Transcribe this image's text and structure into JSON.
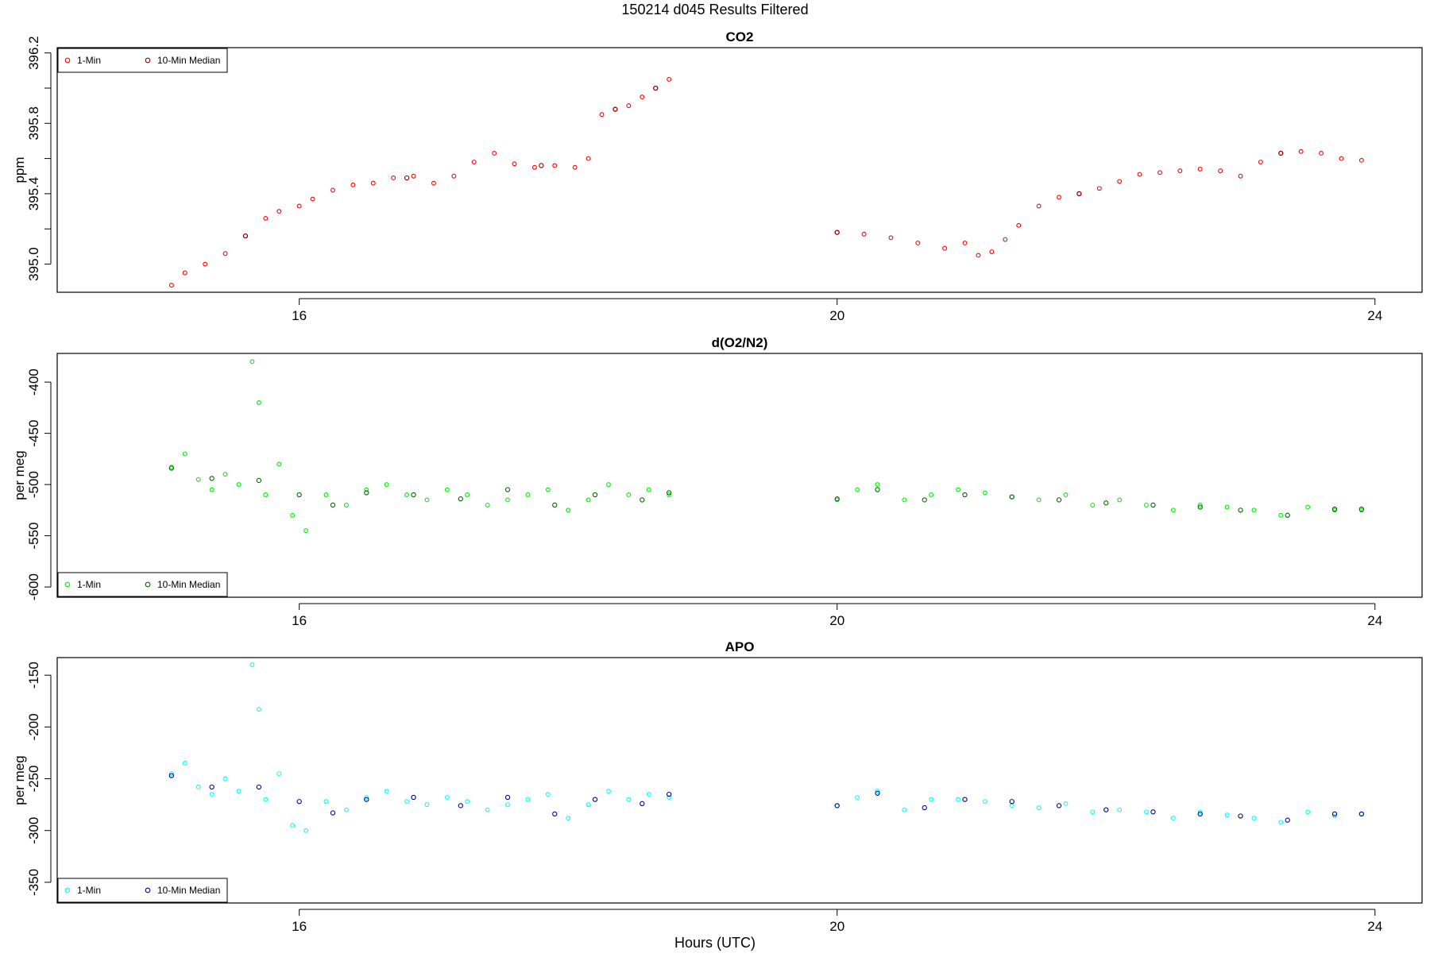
{
  "figure": {
    "title": "150214   d045   Results Filtered",
    "xlabel": "Hours (UTC)"
  },
  "chart_data": [
    {
      "type": "scatter",
      "title": "CO2",
      "ylabel": "ppm",
      "xlim": [
        14.2,
        24.35
      ],
      "ylim": [
        394.84,
        396.23
      ],
      "xticks": [
        16,
        20,
        24
      ],
      "xtick_labels": [
        "16",
        "20",
        "24"
      ],
      "yticks": [
        395.0,
        395.4,
        395.8,
        396.2
      ],
      "ytick_labels": [
        "395.0",
        "395.4",
        "395.8",
        "396.2"
      ],
      "yminor_ticks": [
        395.2,
        395.6,
        396.0
      ],
      "legend": {
        "position": "top-left",
        "entries": [
          "1-Min",
          "10-Min Median"
        ]
      },
      "series": [
        {
          "name": "1-Min",
          "color": "#ff0000",
          "x": [
            15.05,
            15.15,
            15.3,
            15.45,
            15.6,
            15.75,
            15.85,
            16.0,
            16.1,
            16.25,
            16.4,
            16.55,
            16.7,
            16.85,
            17.0,
            17.15,
            17.3,
            17.45,
            17.6,
            17.75,
            17.9,
            18.05,
            18.15,
            18.25,
            18.35,
            18.45,
            18.55,
            18.65,
            18.75,
            20.0,
            20.2,
            20.4,
            20.6,
            20.8,
            20.95,
            21.05,
            21.15,
            21.25,
            21.35,
            21.5,
            21.65,
            21.8,
            21.95,
            22.1,
            22.25,
            22.4,
            22.55,
            22.7,
            22.85,
            23.0,
            23.15,
            23.3,
            23.45,
            23.6,
            23.75,
            23.9
          ],
          "y": [
            394.88,
            394.95,
            395.0,
            395.06,
            395.16,
            395.26,
            395.3,
            395.33,
            395.37,
            395.42,
            395.45,
            395.46,
            395.49,
            395.5,
            395.46,
            395.5,
            395.58,
            395.63,
            395.57,
            395.55,
            395.56,
            395.55,
            395.6,
            395.85,
            395.88,
            395.9,
            395.95,
            396.0,
            396.05,
            395.18,
            395.17,
            395.15,
            395.12,
            395.09,
            395.12,
            395.05,
            395.07,
            395.14,
            395.22,
            395.33,
            395.38,
            395.4,
            395.43,
            395.47,
            395.51,
            395.52,
            395.53,
            395.54,
            395.53,
            395.5,
            395.58,
            395.63,
            395.64,
            395.63,
            395.6,
            395.59
          ]
        },
        {
          "name": "10-Min Median",
          "color": "#8b0000",
          "x": [
            15.6,
            16.8,
            17.8,
            18.35,
            18.65,
            20.0,
            21.8,
            23.3
          ],
          "y": [
            395.16,
            395.49,
            395.56,
            395.88,
            396.0,
            395.18,
            395.4,
            395.63
          ]
        }
      ]
    },
    {
      "type": "scatter",
      "title": "d(O2/N2)",
      "ylabel": "per meg",
      "xlim": [
        14.2,
        24.35
      ],
      "ylim": [
        -610,
        -372
      ],
      "xticks": [
        16,
        20,
        24
      ],
      "xtick_labels": [
        "16",
        "20",
        "24"
      ],
      "yticks": [
        -400,
        -450,
        -500,
        -550,
        -600
      ],
      "ytick_labels": [
        "-400",
        "-450",
        "-500",
        "-550",
        "-600"
      ],
      "legend": {
        "position": "bottom-left",
        "entries": [
          "1-Min",
          "10-Min Median"
        ]
      },
      "series": [
        {
          "name": "1-Min",
          "color": "#00ee00",
          "x": [
            15.05,
            15.15,
            15.25,
            15.35,
            15.45,
            15.55,
            15.65,
            15.7,
            15.75,
            15.85,
            15.95,
            16.05,
            16.2,
            16.35,
            16.5,
            16.65,
            16.8,
            16.95,
            17.1,
            17.25,
            17.4,
            17.55,
            17.7,
            17.85,
            18.0,
            18.15,
            18.3,
            18.45,
            18.6,
            18.75,
            20.0,
            20.15,
            20.3,
            20.5,
            20.7,
            20.9,
            21.1,
            21.3,
            21.5,
            21.7,
            21.9,
            22.1,
            22.3,
            22.5,
            22.7,
            22.9,
            23.1,
            23.3,
            23.5,
            23.7,
            23.9
          ],
          "y": [
            -483,
            -470,
            -495,
            -505,
            -490,
            -500,
            -380,
            -420,
            -510,
            -480,
            -530,
            -545,
            -510,
            -520,
            -505,
            -500,
            -510,
            -515,
            -505,
            -510,
            -520,
            -515,
            -510,
            -505,
            -525,
            -515,
            -500,
            -510,
            -505,
            -510,
            -515,
            -505,
            -500,
            -515,
            -510,
            -505,
            -508,
            -512,
            -515,
            -510,
            -520,
            -515,
            -520,
            -525,
            -520,
            -522,
            -525,
            -530,
            -522,
            -525,
            -525
          ]
        },
        {
          "name": "10-Min Median",
          "color": "#006400",
          "x": [
            15.05,
            15.35,
            15.7,
            16.0,
            16.25,
            16.5,
            16.85,
            17.2,
            17.55,
            17.9,
            18.2,
            18.55,
            18.75,
            20.0,
            20.3,
            20.65,
            20.95,
            21.3,
            21.65,
            22.0,
            22.35,
            22.7,
            23.0,
            23.35,
            23.7,
            23.9
          ],
          "y": [
            -484,
            -494,
            -496,
            -510,
            -520,
            -508,
            -510,
            -514,
            -505,
            -520,
            -510,
            -515,
            -508,
            -514,
            -505,
            -515,
            -510,
            -512,
            -515,
            -518,
            -520,
            -522,
            -525,
            -530,
            -524,
            -524
          ]
        }
      ]
    },
    {
      "type": "scatter",
      "title": "APO",
      "ylabel": "per meg",
      "xlim": [
        14.2,
        24.35
      ],
      "ylim": [
        -370,
        -133
      ],
      "xticks": [
        16,
        20,
        24
      ],
      "xtick_labels": [
        "16",
        "20",
        "24"
      ],
      "yticks": [
        -150,
        -200,
        -250,
        -300,
        -350
      ],
      "ytick_labels": [
        "-150",
        "-200",
        "-250",
        "-300",
        "-350"
      ],
      "legend": {
        "position": "bottom-left",
        "entries": [
          "1-Min",
          "10-Min Median"
        ]
      },
      "series": [
        {
          "name": "1-Min",
          "color": "#00ffff",
          "x": [
            15.05,
            15.15,
            15.25,
            15.35,
            15.45,
            15.55,
            15.65,
            15.7,
            15.75,
            15.85,
            15.95,
            16.05,
            16.2,
            16.35,
            16.5,
            16.65,
            16.8,
            16.95,
            17.1,
            17.25,
            17.4,
            17.55,
            17.7,
            17.85,
            18.0,
            18.15,
            18.3,
            18.45,
            18.6,
            18.75,
            20.0,
            20.15,
            20.3,
            20.5,
            20.7,
            20.9,
            21.1,
            21.3,
            21.5,
            21.7,
            21.9,
            22.1,
            22.3,
            22.5,
            22.7,
            22.9,
            23.1,
            23.3,
            23.5,
            23.7,
            23.9
          ],
          "y": [
            -245,
            -235,
            -258,
            -265,
            -250,
            -262,
            -140,
            -183,
            -270,
            -245,
            -295,
            -300,
            -272,
            -280,
            -268,
            -262,
            -272,
            -275,
            -268,
            -272,
            -280,
            -275,
            -270,
            -265,
            -288,
            -275,
            -262,
            -270,
            -265,
            -268,
            -276,
            -268,
            -262,
            -280,
            -270,
            -270,
            -272,
            -276,
            -278,
            -274,
            -282,
            -280,
            -282,
            -288,
            -282,
            -285,
            -288,
            -292,
            -282,
            -286,
            -284
          ]
        },
        {
          "name": "10-Min Median",
          "color": "#00008b",
          "x": [
            15.05,
            15.35,
            15.7,
            16.0,
            16.25,
            16.5,
            16.85,
            17.2,
            17.55,
            17.9,
            18.2,
            18.55,
            18.75,
            20.0,
            20.3,
            20.65,
            20.95,
            21.3,
            21.65,
            22.0,
            22.35,
            22.7,
            23.0,
            23.35,
            23.7,
            23.9
          ],
          "y": [
            -247,
            -258,
            -258,
            -272,
            -283,
            -270,
            -268,
            -276,
            -268,
            -284,
            -270,
            -274,
            -265,
            -276,
            -264,
            -278,
            -270,
            -272,
            -276,
            -280,
            -282,
            -284,
            -286,
            -290,
            -284,
            -284
          ]
        }
      ]
    }
  ]
}
